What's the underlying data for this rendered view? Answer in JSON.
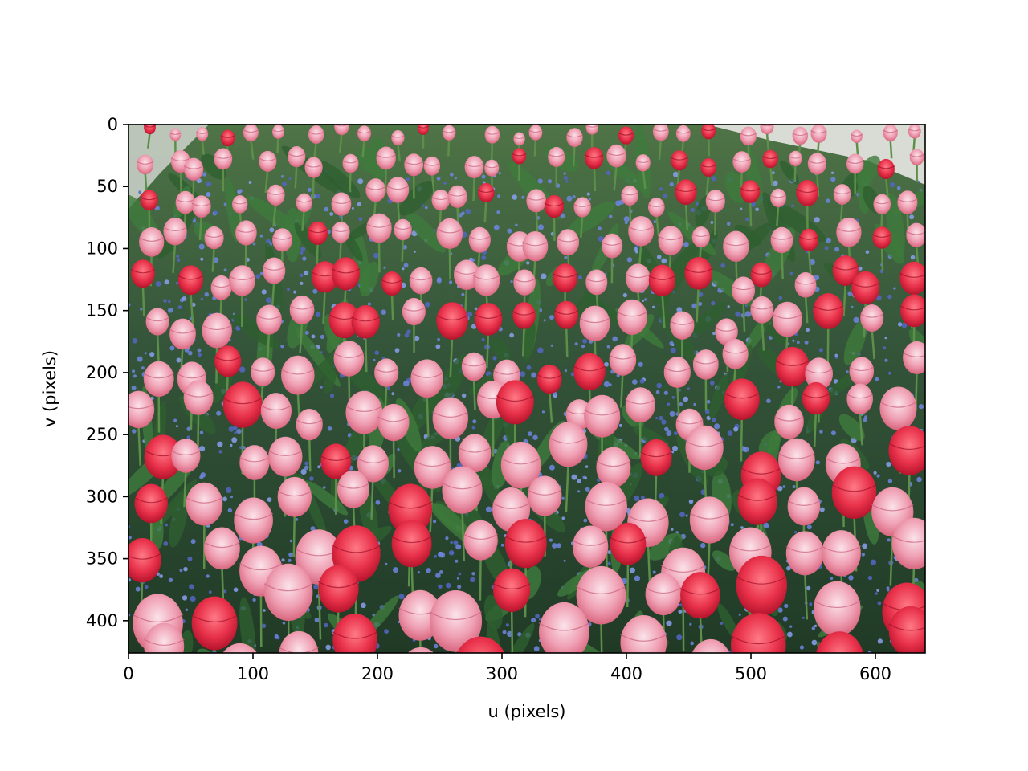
{
  "chart_data": {
    "type": "image",
    "image_content": "tulip field with pink and red tulips over blue forget-me-nots",
    "title": "",
    "xlabel": "u (pixels)",
    "ylabel": "v (pixels)",
    "xlim": [
      0,
      640
    ],
    "ylim": [
      426,
      0
    ],
    "y_axis_inverted": true,
    "grid": false,
    "xticks": [
      "0",
      "100",
      "200",
      "300",
      "400",
      "500",
      "600"
    ],
    "yticks": [
      "0",
      "50",
      "100",
      "150",
      "200",
      "250",
      "300",
      "350",
      "400"
    ],
    "xtick_values": [
      0,
      100,
      200,
      300,
      400,
      500,
      600
    ],
    "ytick_values": [
      0,
      50,
      100,
      150,
      200,
      250,
      300,
      350,
      400
    ]
  }
}
